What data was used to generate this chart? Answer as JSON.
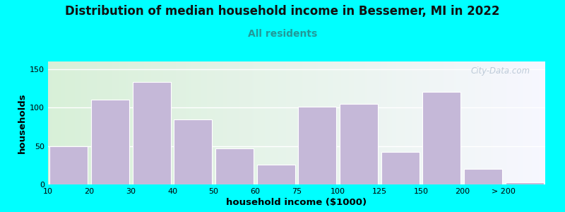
{
  "title": "Distribution of median household income in Bessemer, MI in 2022",
  "subtitle": "All residents",
  "xlabel": "household income ($1000)",
  "ylabel": "households",
  "title_fontsize": 12,
  "subtitle_fontsize": 10,
  "axis_label_fontsize": 9.5,
  "background_color": "#00FFFF",
  "bar_color": "#c5b8d8",
  "yticks": [
    0,
    50,
    100,
    150
  ],
  "values": [
    50,
    110,
    133,
    85,
    47,
    26,
    101,
    105,
    42,
    120,
    20,
    3
  ],
  "bar_lefts": [
    0,
    1,
    2,
    3,
    4,
    5,
    6,
    7,
    8,
    9,
    10,
    11
  ],
  "xtick_labels": [
    "10",
    "20",
    "30",
    "40",
    "50",
    "60",
    "75",
    "100",
    "125",
    "150",
    "200",
    "> 200"
  ],
  "ylim": [
    0,
    160
  ],
  "watermark": "City-Data.com"
}
